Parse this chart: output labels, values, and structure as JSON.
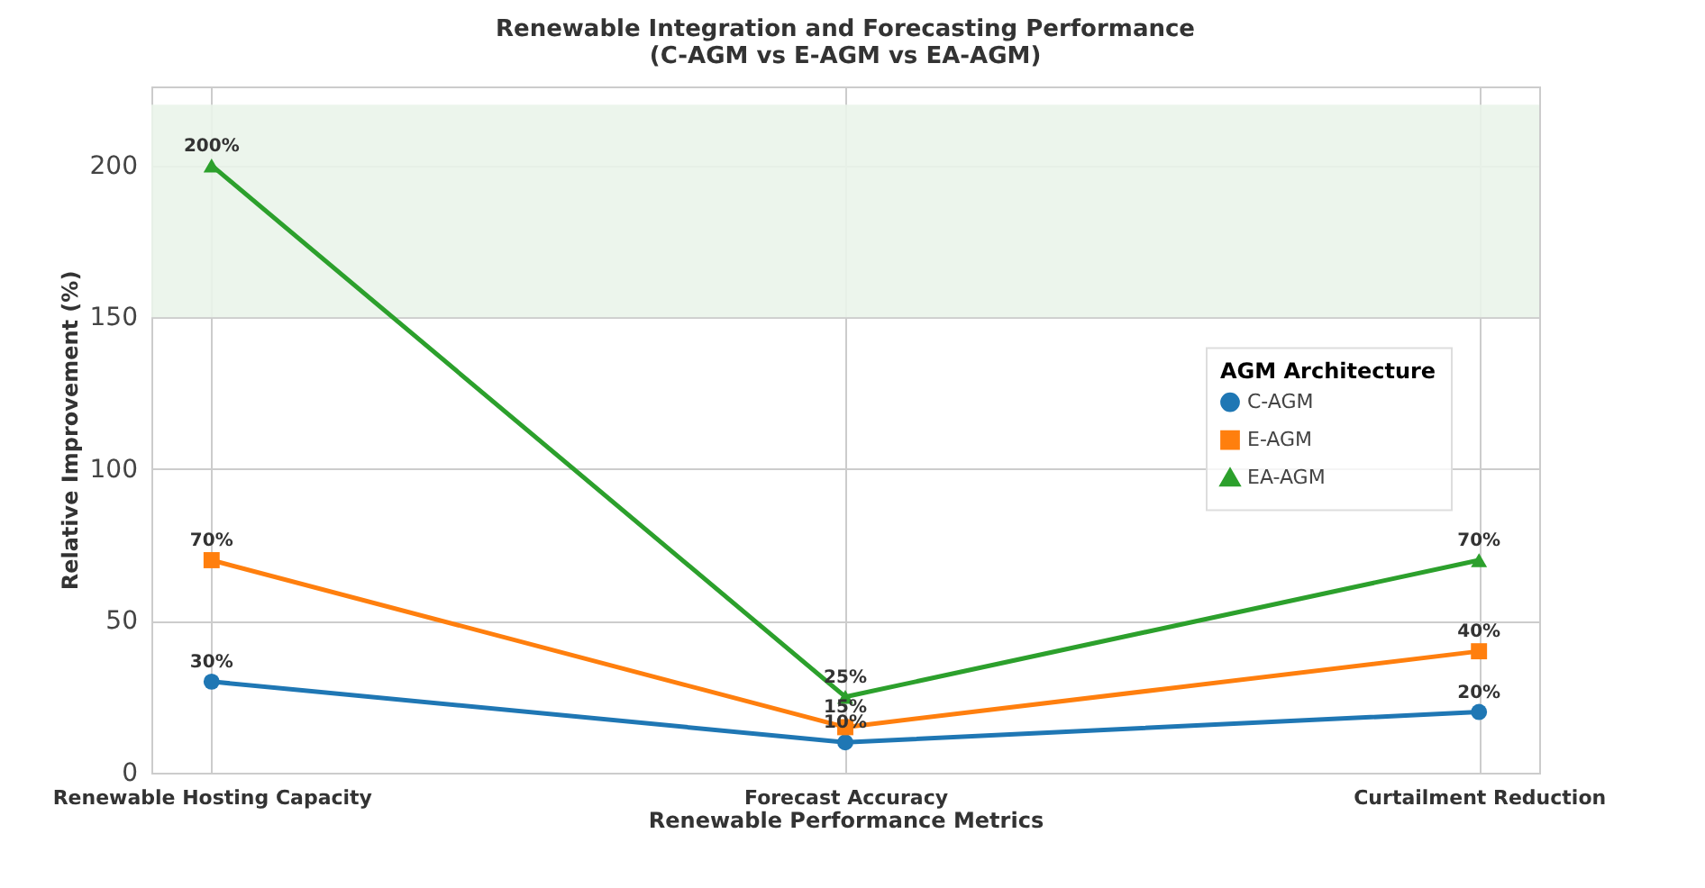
{
  "chart_data": {
    "type": "line",
    "title": "Renewable Integration and Forecasting Performance\n(C-AGM vs E-AGM vs EA-AGM)",
    "xlabel": "Renewable Performance Metrics",
    "ylabel": "Relative Improvement (%)",
    "legend_title": "AGM Architecture",
    "categories": [
      "Renewable Hosting Capacity",
      "Forecast Accuracy",
      "Curtailment Reduction"
    ],
    "series": [
      {
        "name": "C-AGM",
        "color": "#1f77b4",
        "marker": "circle",
        "values": [
          30,
          10,
          20
        ],
        "value_labels": [
          "30%",
          "10%",
          "20%"
        ]
      },
      {
        "name": "E-AGM",
        "color": "#ff7f0e",
        "marker": "square",
        "values": [
          70,
          15,
          40
        ],
        "value_labels": [
          "70%",
          "15%",
          "40%"
        ]
      },
      {
        "name": "EA-AGM",
        "color": "#2ca02c",
        "marker": "triangle",
        "values": [
          200,
          25,
          70
        ],
        "value_labels": [
          "200%",
          "25%",
          "70%"
        ]
      }
    ],
    "ylim": [
      0,
      226
    ],
    "yticks": [
      0,
      50,
      100,
      150,
      200
    ],
    "bands": [
      {
        "axis": "y",
        "from": 150,
        "to": 220,
        "color": "#eaf4ea"
      }
    ],
    "grid": true,
    "legend": "right",
    "line_style": "solid"
  }
}
